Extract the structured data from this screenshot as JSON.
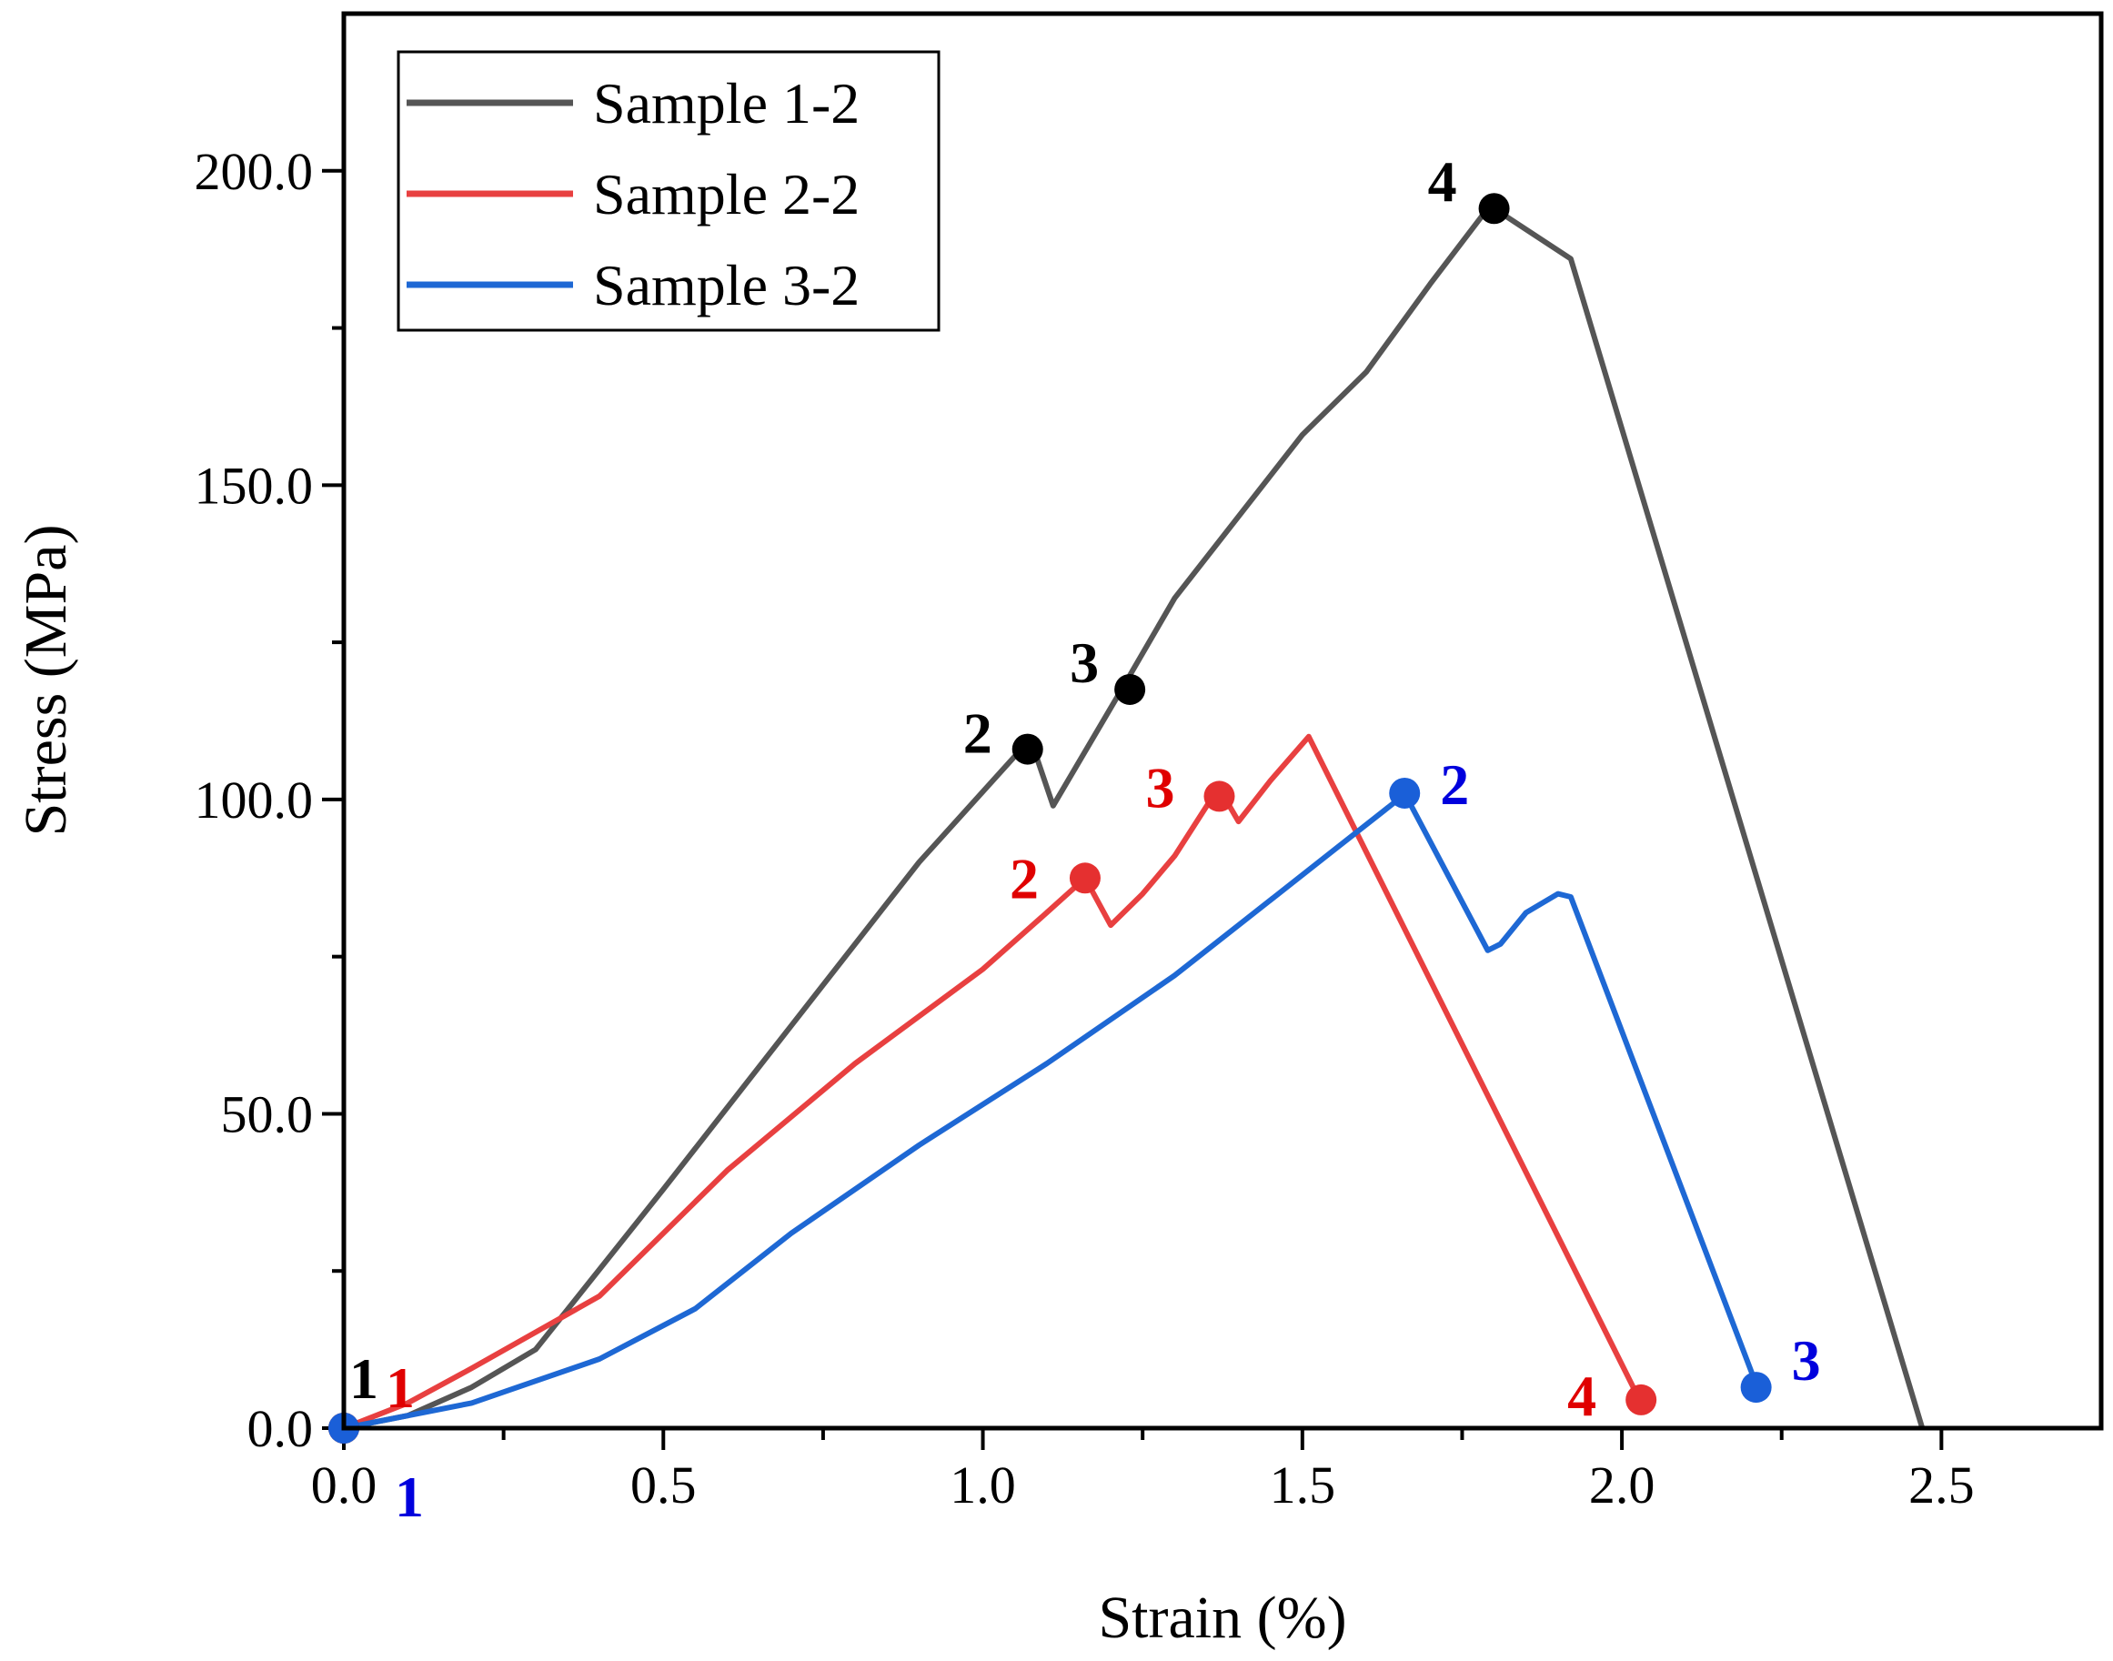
{
  "chart_data": {
    "type": "line",
    "title": "",
    "xlabel": "Strain (%)",
    "ylabel": "Stress (MPa)",
    "xlim": [
      0,
      2.75
    ],
    "ylim": [
      0,
      225
    ],
    "x_ticks": [
      0,
      0.5,
      1.0,
      1.5,
      2.0,
      2.5
    ],
    "x_tick_labels": [
      "0.0",
      "0.5",
      "1.0",
      "1.5",
      "2.0",
      "2.5"
    ],
    "x_minor_ticks": [
      0.25,
      0.75,
      1.25,
      1.75,
      2.25
    ],
    "y_ticks": [
      0,
      50,
      100,
      150,
      200
    ],
    "y_tick_labels": [
      "0.0",
      "50.0",
      "100.0",
      "150.0",
      "200.0"
    ],
    "y_minor_ticks": [
      25,
      75,
      125,
      175
    ],
    "grid": false,
    "legend_position": "top-left",
    "series": [
      {
        "name": "Sample 1-2",
        "color": "#555555",
        "points": [
          [
            0,
            0
          ],
          [
            0.1,
            2
          ],
          [
            0.2,
            6.5
          ],
          [
            0.3,
            12.5
          ],
          [
            0.5,
            38
          ],
          [
            0.7,
            64
          ],
          [
            0.9,
            90
          ],
          [
            1.06,
            108
          ],
          [
            1.08,
            108
          ],
          [
            1.11,
            99
          ],
          [
            1.22,
            118
          ],
          [
            1.3,
            132
          ],
          [
            1.5,
            158
          ],
          [
            1.6,
            168
          ],
          [
            1.7,
            182
          ],
          [
            1.79,
            194
          ],
          [
            1.8,
            194
          ],
          [
            1.92,
            186
          ],
          [
            2.47,
            0
          ]
        ],
        "markers": [
          {
            "x": 0,
            "y": 0,
            "label": "1"
          },
          {
            "x": 1.07,
            "y": 108,
            "label": "2"
          },
          {
            "x": 1.23,
            "y": 117.5,
            "label": "3"
          },
          {
            "x": 1.8,
            "y": 194,
            "label": "4"
          }
        ]
      },
      {
        "name": "Sample 2-2",
        "color": "#e84040",
        "points": [
          [
            0,
            0
          ],
          [
            0.1,
            4
          ],
          [
            0.2,
            9.5
          ],
          [
            0.4,
            21
          ],
          [
            0.6,
            41
          ],
          [
            0.8,
            58
          ],
          [
            1.0,
            73
          ],
          [
            1.1,
            82
          ],
          [
            1.16,
            87.5
          ],
          [
            1.2,
            80
          ],
          [
            1.25,
            85
          ],
          [
            1.3,
            91
          ],
          [
            1.36,
            100.5
          ],
          [
            1.38,
            100
          ],
          [
            1.4,
            96.5
          ],
          [
            1.45,
            103
          ],
          [
            1.51,
            110
          ],
          [
            2.03,
            4
          ]
        ],
        "markers": [
          {
            "x": 0,
            "y": 0,
            "label": "1"
          },
          {
            "x": 1.16,
            "y": 87.5,
            "label": "2"
          },
          {
            "x": 1.37,
            "y": 100.5,
            "label": "3"
          },
          {
            "x": 2.03,
            "y": 4.5,
            "label": "4"
          }
        ]
      },
      {
        "name": "Sample 3-2",
        "color": "#1e68d4",
        "points": [
          [
            0,
            0
          ],
          [
            0.2,
            4
          ],
          [
            0.4,
            11
          ],
          [
            0.55,
            19
          ],
          [
            0.7,
            31
          ],
          [
            0.9,
            45
          ],
          [
            1.1,
            58
          ],
          [
            1.3,
            72
          ],
          [
            1.45,
            84
          ],
          [
            1.55,
            92
          ],
          [
            1.65,
            100
          ],
          [
            1.66,
            101
          ],
          [
            1.79,
            76
          ],
          [
            1.81,
            77
          ],
          [
            1.85,
            82
          ],
          [
            1.9,
            85
          ],
          [
            1.92,
            84.5
          ],
          [
            2.21,
            7
          ]
        ],
        "markers": [
          {
            "x": 0,
            "y": 0,
            "label": "1"
          },
          {
            "x": 1.66,
            "y": 101,
            "label": "2"
          },
          {
            "x": 2.21,
            "y": 6.5,
            "label": "3"
          }
        ]
      }
    ]
  }
}
